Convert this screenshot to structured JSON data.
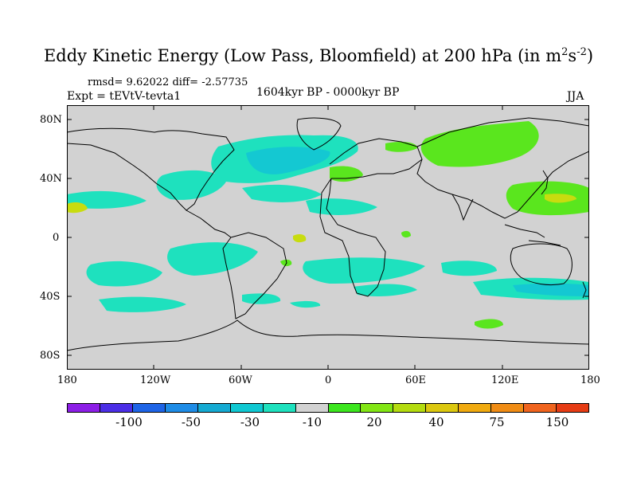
{
  "title": {
    "main": "Eddy Kinetic Energy (Low Pass, Bloomfield) at 200 hPa (in m",
    "sup1": "2",
    "s": "s",
    "sup2": "-2",
    "close": ")"
  },
  "stats": "rmsd= 9.62022  diff= -2.57735",
  "expt": "Expt = tEVtV-tevta1",
  "period": "1604kyr BP - 0000kyr BP",
  "season": "JJA",
  "lat_labels": [
    "80N",
    "40N",
    "0",
    "40S",
    "80S"
  ],
  "lon_labels": [
    "180",
    "120W",
    "60W",
    "0",
    "60E",
    "120E",
    "180"
  ],
  "colorbar": {
    "colors": [
      "#8c1ee6",
      "#4b2ee6",
      "#1e64e6",
      "#1e8ce6",
      "#14aad2",
      "#0fc8d2",
      "#1ee1be",
      "#d2d2d2",
      "#3ce61e",
      "#82e614",
      "#b4dc0f",
      "#dcc80f",
      "#f0aa0f",
      "#f08c14",
      "#f0641e",
      "#e63c14"
    ],
    "labels": [
      "-100",
      "-50",
      "-30",
      "-10",
      "20",
      "40",
      "75",
      "150"
    ]
  },
  "palette": {
    "ocean_bg": "#d2d2d2",
    "teal": "#1ee1be",
    "cyan": "#14c8d2",
    "green": "#5ae61e",
    "yellow": "#c8dc0f"
  }
}
